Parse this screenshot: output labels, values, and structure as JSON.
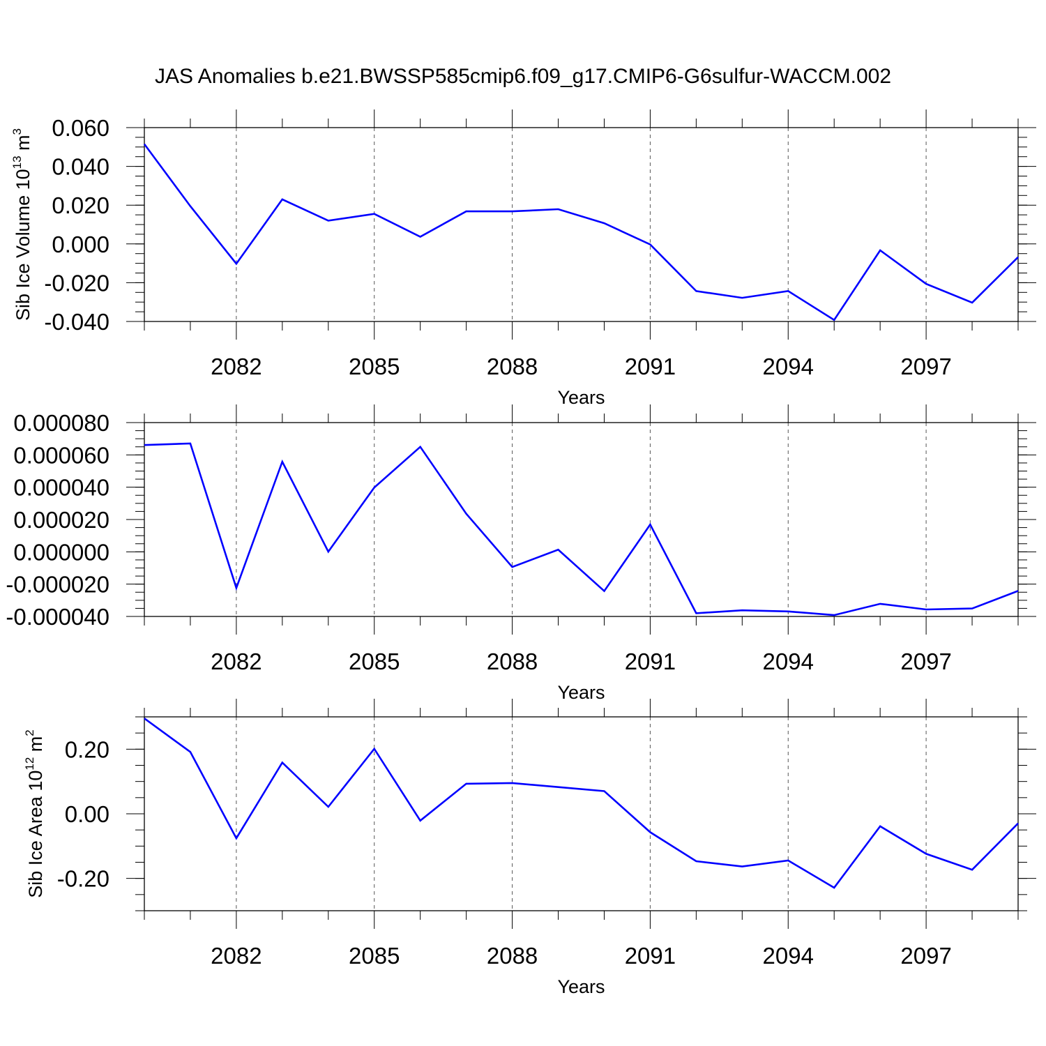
{
  "title": "JAS Anomalies b.e21.BWSSP585cmip6.f09_g17.CMIP6-G6sulfur-WACCM.002",
  "colors": {
    "series": "#0000ff",
    "axes": "#000000",
    "grid": "#555555"
  },
  "chart_data": [
    {
      "type": "line",
      "ylabel": {
        "text": "Sib Ice Volume 10",
        "sup": "13",
        "unit": " m",
        "unit_sup": "3"
      },
      "xlabel": "Years",
      "x": [
        2080,
        2081,
        2082,
        2083,
        2084,
        2085,
        2086,
        2087,
        2088,
        2089,
        2090,
        2091,
        2092,
        2093,
        2094,
        2095,
        2096,
        2097,
        2098,
        2099
      ],
      "values": [
        0.0515,
        0.0195,
        -0.0102,
        0.023,
        0.012,
        0.0155,
        0.0037,
        0.0168,
        0.0168,
        0.0179,
        0.0107,
        -0.0003,
        -0.0243,
        -0.0278,
        -0.0243,
        -0.0392,
        -0.0033,
        -0.0206,
        -0.0303,
        -0.0068
      ],
      "xlim": [
        2080,
        2099
      ],
      "ylim": [
        -0.04,
        0.06
      ],
      "x_ticks": [
        2082,
        2085,
        2088,
        2091,
        2094,
        2097
      ],
      "x_tick_labels": [
        "2082",
        "2085",
        "2088",
        "2091",
        "2094",
        "2097"
      ],
      "y_ticks": [
        -0.04,
        -0.02,
        0.0,
        0.02,
        0.04,
        0.06
      ],
      "y_tick_labels": [
        "-0.040",
        "-0.020",
        "0.000",
        "0.020",
        "0.040",
        "0.060"
      ],
      "y_minor_step": 0.005,
      "grid": "vertical dashed at major x ticks"
    },
    {
      "type": "line",
      "ylabel": null,
      "xlabel": "Years",
      "x": [
        2080,
        2081,
        2082,
        2083,
        2084,
        2085,
        2086,
        2087,
        2088,
        2089,
        2090,
        2091,
        2092,
        2093,
        2094,
        2095,
        2096,
        2097,
        2098,
        2099
      ],
      "values": [
        6.61e-05,
        6.71e-05,
        -2.24e-05,
        5.58e-05,
        1e-07,
        3.98e-05,
        6.5e-05,
        2.36e-05,
        -9.4e-06,
        1.3e-06,
        -2.43e-05,
        1.69e-05,
        -3.8e-05,
        -3.62e-05,
        -3.69e-05,
        -3.92e-05,
        -3.22e-05,
        -3.57e-05,
        -3.51e-05,
        -2.42e-05
      ],
      "xlim": [
        2080,
        2099
      ],
      "ylim": [
        -4e-05,
        8e-05
      ],
      "x_ticks": [
        2082,
        2085,
        2088,
        2091,
        2094,
        2097
      ],
      "x_tick_labels": [
        "2082",
        "2085",
        "2088",
        "2091",
        "2094",
        "2097"
      ],
      "y_ticks": [
        -4e-05,
        -2e-05,
        0.0,
        2e-05,
        4e-05,
        6e-05,
        8e-05
      ],
      "y_tick_labels": [
        "-0.000040",
        "-0.000020",
        "0.000000",
        "0.000020",
        "0.000040",
        "0.000060",
        "0.000080"
      ],
      "y_minor_step": 5e-06,
      "grid": "vertical dashed at major x ticks"
    },
    {
      "type": "line",
      "ylabel": {
        "text": "Sib Ice Area 10",
        "sup": "12",
        "unit": " m",
        "unit_sup": "2"
      },
      "xlabel": "Years",
      "x": [
        2080,
        2081,
        2082,
        2083,
        2084,
        2085,
        2086,
        2087,
        2088,
        2089,
        2090,
        2091,
        2092,
        2093,
        2094,
        2095,
        2096,
        2097,
        2098,
        2099
      ],
      "values": [
        0.2953,
        0.1914,
        -0.0758,
        0.1584,
        0.0215,
        0.2012,
        -0.0211,
        0.093,
        0.0952,
        0.0827,
        0.0701,
        -0.057,
        -0.1468,
        -0.1632,
        -0.1446,
        -0.2288,
        -0.0386,
        -0.1238,
        -0.1731,
        -0.0296
      ],
      "xlim": [
        2080,
        2099
      ],
      "ylim": [
        -0.3,
        0.3
      ],
      "x_ticks": [
        2082,
        2085,
        2088,
        2091,
        2094,
        2097
      ],
      "x_tick_labels": [
        "2082",
        "2085",
        "2088",
        "2091",
        "2094",
        "2097"
      ],
      "y_ticks": [
        -0.2,
        0.0,
        0.2
      ],
      "y_tick_labels": [
        "-0.20",
        "0.00",
        "0.20"
      ],
      "y_minor_step": 0.05,
      "grid": "vertical dashed at major x ticks"
    }
  ]
}
